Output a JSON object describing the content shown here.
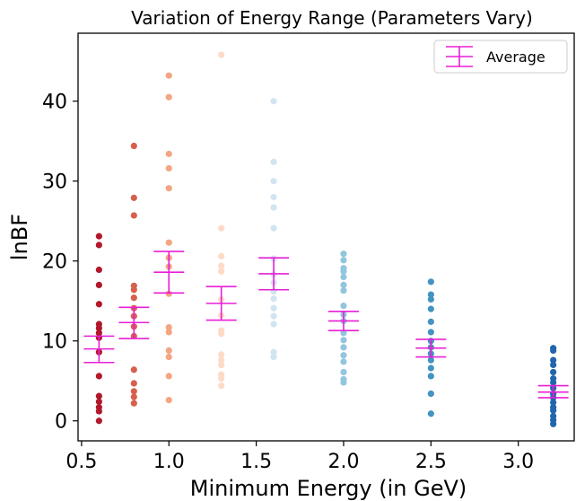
{
  "chart_data": {
    "type": "scatter",
    "title": "Variation of Energy Range (Parameters Vary)",
    "xlabel": "Minimum Energy (in GeV)",
    "ylabel": "lnBF",
    "xlim": [
      0.48,
      3.32
    ],
    "ylim": [
      -2.5,
      48.5
    ],
    "xticks": [
      0.5,
      1.0,
      1.5,
      2.0,
      2.5,
      3.0
    ],
    "xtick_labels": [
      "0.5",
      "1.0",
      "1.5",
      "2.0",
      "2.5",
      "3.0"
    ],
    "yticks": [
      0,
      10,
      20,
      30,
      40
    ],
    "ytick_labels": [
      "0",
      "10",
      "20",
      "30",
      "40"
    ],
    "grid": false,
    "legend_position": "top-right",
    "legend_label": "Average",
    "average_color": "#e81fd6",
    "groups": [
      {
        "x": 0.6,
        "color": "#b2182b",
        "values": [
          23.1,
          22.0,
          18.9,
          17.0,
          14.6,
          12.1,
          11.6,
          11.0,
          10.4,
          8.6,
          5.6,
          3.1,
          2.4,
          1.7,
          1.2,
          0.0
        ],
        "mean": 9.0,
        "err_low": 7.3,
        "err_high": 10.6
      },
      {
        "x": 0.8,
        "color": "#d6604d",
        "values": [
          34.4,
          27.9,
          25.7,
          16.9,
          16.4,
          15.4,
          14.1,
          13.1,
          11.8,
          10.6,
          6.4,
          4.7,
          3.7,
          3.0,
          2.2
        ],
        "mean": 12.3,
        "err_low": 10.3,
        "err_high": 14.2
      },
      {
        "x": 1.0,
        "color": "#f4a582",
        "values": [
          43.2,
          40.5,
          33.4,
          31.6,
          29.1,
          22.3,
          20.4,
          19.3,
          15.9,
          11.7,
          11.1,
          8.8,
          8.0,
          5.6,
          2.6
        ],
        "mean": 18.6,
        "err_low": 16.0,
        "err_high": 21.2
      },
      {
        "x": 1.3,
        "color": "#fddbc7",
        "values": [
          45.8,
          24.1,
          20.6,
          19.4,
          18.7,
          15.2,
          13.2,
          11.3,
          10.9,
          8.3,
          7.6,
          7.0,
          5.8,
          5.3,
          4.4
        ],
        "mean": 14.7,
        "err_low": 12.6,
        "err_high": 16.8
      },
      {
        "x": 1.6,
        "color": "#d1e5f0",
        "values": [
          40.0,
          32.4,
          30.0,
          28.0,
          26.7,
          24.1,
          20.3,
          18.3,
          17.3,
          16.2,
          15.3,
          14.1,
          13.1,
          12.1,
          8.6,
          8.0
        ],
        "mean": 18.4,
        "err_low": 16.4,
        "err_high": 20.4
      },
      {
        "x": 2.0,
        "color": "#92c5de",
        "values": [
          20.9,
          20.1,
          19.1,
          18.7,
          18.0,
          17.0,
          16.3,
          14.4,
          13.3,
          12.5,
          11.0,
          10.1,
          9.2,
          8.2,
          7.4,
          6.1,
          5.2,
          4.8
        ],
        "mean": 12.5,
        "err_low": 11.3,
        "err_high": 13.7
      },
      {
        "x": 2.5,
        "color": "#4393c3",
        "values": [
          17.4,
          15.8,
          15.2,
          14.0,
          12.4,
          11.1,
          10.0,
          9.2,
          8.4,
          7.6,
          6.6,
          5.6,
          3.4,
          0.9
        ],
        "mean": 9.1,
        "err_low": 8.0,
        "err_high": 10.2
      },
      {
        "x": 3.2,
        "color": "#2166ac",
        "values": [
          9.1,
          8.8,
          7.6,
          7.0,
          6.1,
          5.3,
          4.8,
          4.1,
          3.4,
          2.9,
          2.3,
          1.7,
          1.3,
          0.6,
          0.1,
          -0.4
        ],
        "mean": 3.6,
        "err_low": 2.9,
        "err_high": 4.4
      }
    ]
  }
}
